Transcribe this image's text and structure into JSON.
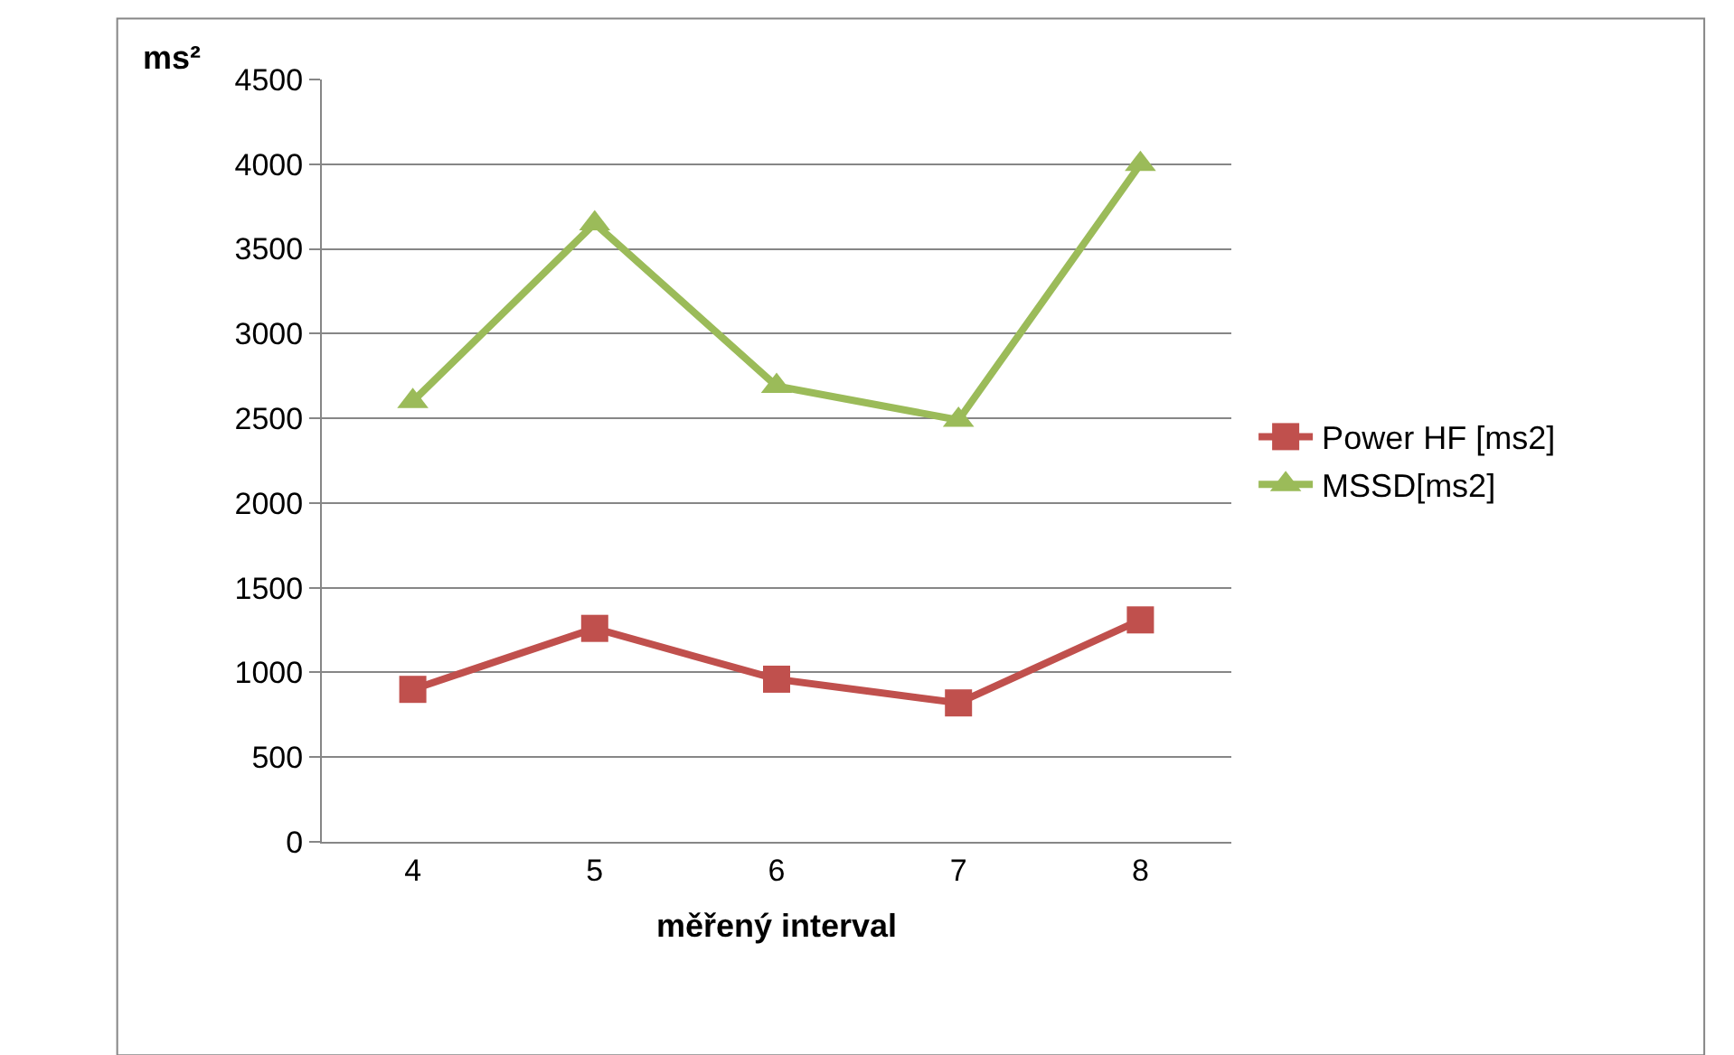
{
  "chart_data": {
    "type": "line",
    "xlabel": "měřený interval",
    "ylabel": "ms²",
    "categories": [
      "4",
      "5",
      "6",
      "7",
      "8"
    ],
    "series": [
      {
        "name": "Power HF [ms2]",
        "color": "#c0504d",
        "marker": "square",
        "values": [
          900,
          1260,
          960,
          820,
          1310
        ]
      },
      {
        "name": "MSSD[ms2]",
        "color": "#9bbb59",
        "marker": "triangle",
        "values": [
          2600,
          3650,
          2690,
          2490,
          4000
        ]
      }
    ],
    "ylim": [
      0,
      4500
    ],
    "yticks": [
      0,
      500,
      1000,
      1500,
      2000,
      2500,
      3000,
      3500,
      4000,
      4500
    ],
    "grid": "y",
    "legend": "right"
  }
}
